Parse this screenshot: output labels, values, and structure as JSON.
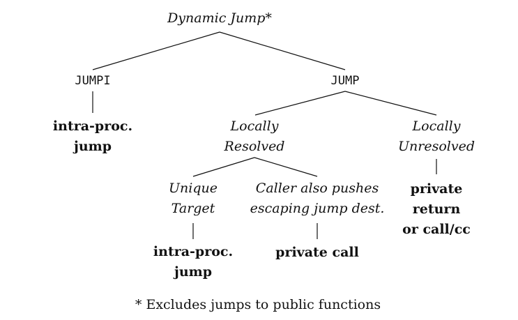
{
  "root": {
    "label": "Dynamic Jump*"
  },
  "jumpi": {
    "label": "JUMPI",
    "leaf": [
      "intra-proc.",
      "jump"
    ]
  },
  "jump": {
    "label": "JUMP"
  },
  "locally_resolved": {
    "label": [
      "Locally",
      "Resolved"
    ]
  },
  "locally_unresolved": {
    "label": [
      "Locally",
      "Unresolved"
    ],
    "leaf": [
      "private",
      "return",
      "or call/cc"
    ]
  },
  "unique_target": {
    "label": [
      "Unique",
      "Target"
    ],
    "leaf": [
      "intra-proc.",
      "jump"
    ]
  },
  "caller_pushes": {
    "label": [
      "Caller also pushes",
      "escaping jump dest."
    ],
    "leaf": [
      "private call"
    ]
  },
  "footnote": "* Excludes jumps to public functions"
}
